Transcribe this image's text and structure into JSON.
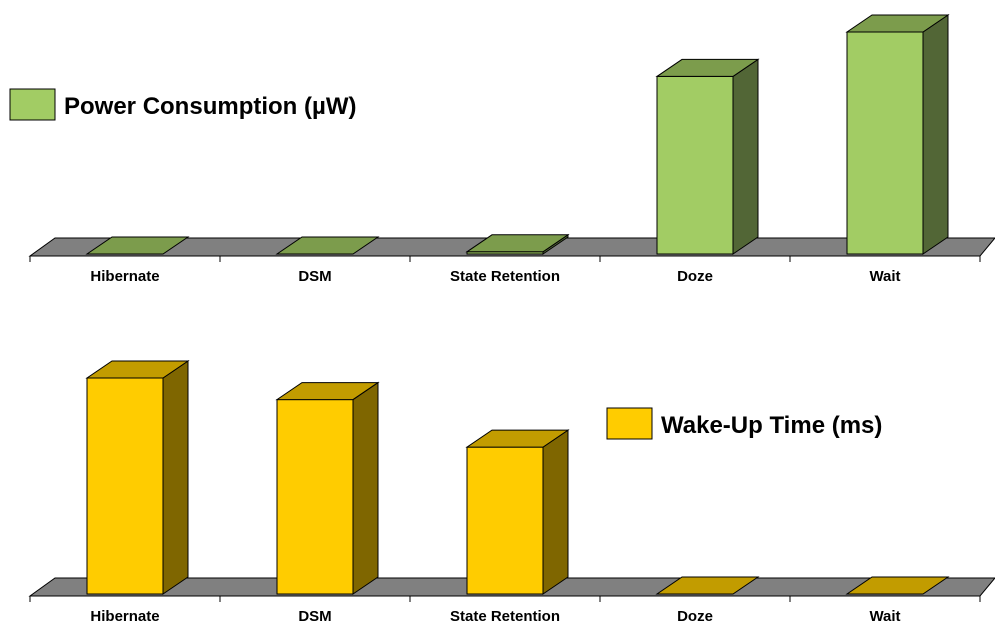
{
  "chart_data": [
    {
      "type": "bar",
      "categories": [
        "Hibernate",
        "DSM",
        "State Retention",
        "Doze",
        "Wait"
      ],
      "series": [
        {
          "name": "Power Consumption (µW)",
          "values": [
            0,
            0,
            1,
            80,
            100
          ]
        }
      ],
      "ylim": [
        0,
        100
      ],
      "grid": false,
      "legend_position": "top-left",
      "colors": {
        "front": "#a2cc64",
        "side": "#526636",
        "top": "#7c9c4c"
      }
    },
    {
      "type": "bar",
      "categories": [
        "Hibernate",
        "DSM",
        "State Retention",
        "Doze",
        "Wait"
      ],
      "series": [
        {
          "name": "Wake-Up Time (ms)",
          "values": [
            100,
            90,
            68,
            0,
            0
          ]
        }
      ],
      "ylim": [
        0,
        100
      ],
      "grid": false,
      "legend_position": "right",
      "colors": {
        "front": "#ffcc00",
        "side": "#7f6600",
        "top": "#c29c00"
      }
    }
  ],
  "floor_color": "#808080"
}
